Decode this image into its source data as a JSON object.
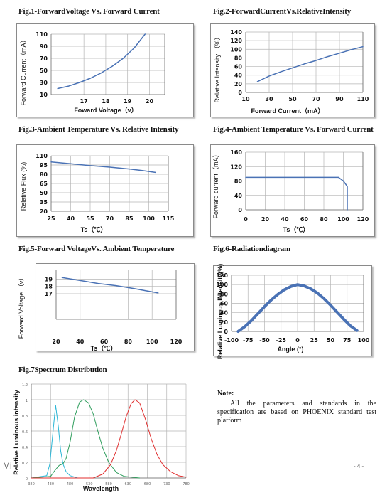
{
  "titles": {
    "f1": "Fig.1-ForwardVoltage Vs. Forward Current",
    "f2": "Fig.2-ForwardCurrentVs.RelativeIntensity",
    "f3": "Fig.3-Ambient Temperature Vs. Relative Intensity",
    "f4": "Fig.4-Ambient Temperature Vs. Forward Current",
    "f5": "Fig.5-Forward VoltageVs. Ambient Temperature",
    "f6": "Fig.6-Radiationdiagram",
    "f7": "Fig.7Spectrum Distribution"
  },
  "note": {
    "title": "Note:",
    "body": "All the parameters and standards in the specification are based on PHOENIX standard test platform"
  },
  "page_number": "- 4 -",
  "stray_text": "Mi",
  "colors": {
    "line": "#4a72b5",
    "spectrum_blue": "#2bb6d6",
    "spectrum_green": "#2e9d5c",
    "spectrum_red": "#e02d2d"
  },
  "chart_data": [
    {
      "id": "fig1",
      "type": "line",
      "xlabel": "Foward Voltage（v）",
      "ylabel": "Forward Current（mA）",
      "xticks": [
        "17",
        "18",
        "19",
        "20"
      ],
      "yticks": [
        "10",
        "30",
        "50",
        "70",
        "90",
        "110"
      ],
      "xlim": [
        15.5,
        20.7
      ],
      "ylim": [
        10,
        110
      ],
      "grid": true,
      "series": [
        {
          "x": [
            15.8,
            16.3,
            16.8,
            17.3,
            17.8,
            18.3,
            18.8,
            19.3,
            19.8
          ],
          "y": [
            20,
            24,
            30,
            37,
            46,
            57,
            70,
            87,
            110
          ]
        }
      ]
    },
    {
      "id": "fig2",
      "type": "line",
      "xlabel": "Forward Current（mA）",
      "ylabel": "Relative Intensity （%）",
      "xticks": [
        "10",
        "30",
        "50",
        "70",
        "90",
        "110"
      ],
      "yticks": [
        "0",
        "20",
        "40",
        "60",
        "80",
        "100",
        "120",
        "140"
      ],
      "xlim": [
        10,
        110
      ],
      "ylim": [
        0,
        140
      ],
      "grid": true,
      "series": [
        {
          "x": [
            20,
            30,
            40,
            50,
            60,
            70,
            80,
            90,
            100,
            110
          ],
          "y": [
            25,
            38,
            48,
            57,
            66,
            74,
            83,
            91,
            99,
            106
          ]
        }
      ]
    },
    {
      "id": "fig3",
      "type": "line",
      "xlabel": "Ts（℃）",
      "ylabel": "Relative Flux (%)",
      "xticks": [
        "25",
        "40",
        "55",
        "70",
        "85",
        "100",
        "115"
      ],
      "yticks": [
        "20",
        "35",
        "50",
        "65",
        "80",
        "95",
        "110"
      ],
      "xlim": [
        25,
        115
      ],
      "ylim": [
        20,
        110
      ],
      "grid": true,
      "series": [
        {
          "x": [
            25,
            40,
            55,
            70,
            85,
            95,
            105
          ],
          "y": [
            100,
            97,
            94,
            91.5,
            88.5,
            86,
            83
          ]
        }
      ]
    },
    {
      "id": "fig4",
      "type": "line",
      "xlabel": "Ts（℃）",
      "ylabel": "Forward current（mA）",
      "xticks": [
        "0",
        "20",
        "40",
        "60",
        "80",
        "100",
        "120"
      ],
      "yticks": [
        "0",
        "40",
        "80",
        "120",
        "160"
      ],
      "xlim": [
        0,
        120
      ],
      "ylim": [
        0,
        160
      ],
      "grid": true,
      "series": [
        {
          "x": [
            0,
            95,
            100,
            104,
            104
          ],
          "y": [
            90,
            90,
            80,
            65,
            0
          ]
        }
      ]
    },
    {
      "id": "fig5",
      "type": "line",
      "xlabel": "Ts（℃）",
      "ylabel": "Forward Voltage （v）",
      "xticks": [
        "20",
        "40",
        "60",
        "80",
        "100",
        "120"
      ],
      "yticks": [
        "17",
        "18",
        "19"
      ],
      "xlim": [
        20,
        120
      ],
      "ylim": [
        13.5,
        20.3
      ],
      "grid": true,
      "series": [
        {
          "x": [
            25,
            40,
            55,
            70,
            85,
            95,
            105
          ],
          "y": [
            19.2,
            18.8,
            18.4,
            18.1,
            17.7,
            17.4,
            17.1
          ]
        }
      ]
    },
    {
      "id": "fig6",
      "type": "line",
      "xlabel": "Angle (°)",
      "ylabel": "Relative Luminous INtensity(%)",
      "xticks": [
        "-100",
        "-75",
        "-50",
        "-25",
        "0",
        "25",
        "50",
        "75",
        "100"
      ],
      "yticks": [
        "0",
        "20",
        "40",
        "60",
        "80",
        "100",
        "120"
      ],
      "xlim": [
        -100,
        100
      ],
      "ylim": [
        0,
        120
      ],
      "grid": true,
      "series": [
        {
          "x": [
            -90,
            -80,
            -70,
            -60,
            -50,
            -40,
            -30,
            -20,
            -10,
            0,
            10,
            20,
            30,
            40,
            50,
            60,
            70,
            80,
            90
          ],
          "y": [
            0,
            10,
            23,
            38,
            53,
            67,
            79,
            89,
            96,
            100,
            97,
            91,
            82,
            70,
            56,
            41,
            26,
            12,
            2
          ]
        }
      ]
    },
    {
      "id": "fig7",
      "type": "line",
      "xlabel": "Wavelength",
      "ylabel": "Relative Luminous intensity",
      "xticks": [
        "380",
        "430",
        "480",
        "530",
        "580",
        "630",
        "680",
        "730",
        "780"
      ],
      "yticks": [
        "0",
        "0.2",
        "0.4",
        "0.6",
        "0.8",
        "1",
        "1.2"
      ],
      "xlim": [
        380,
        780
      ],
      "ylim": [
        0,
        1.2
      ],
      "grid": true,
      "series": [
        {
          "x": [
            380,
            420,
            428,
            436,
            443,
            450,
            456,
            462,
            470,
            480,
            500
          ],
          "y": [
            0,
            0.03,
            0.18,
            0.58,
            0.93,
            0.66,
            0.35,
            0.18,
            0.08,
            0.03,
            0
          ]
        },
        {
          "x": [
            380,
            430,
            440,
            452,
            462,
            470,
            480,
            492,
            505,
            515,
            528,
            540,
            552,
            565,
            580,
            600,
            620,
            640,
            660
          ],
          "y": [
            0,
            0.02,
            0.09,
            0.16,
            0.18,
            0.25,
            0.45,
            0.78,
            0.97,
            1.0,
            0.96,
            0.82,
            0.6,
            0.38,
            0.2,
            0.07,
            0.02,
            0.01,
            0
          ]
        },
        {
          "x": [
            380,
            540,
            565,
            585,
            600,
            612,
            625,
            638,
            648,
            660,
            675,
            690,
            705,
            720,
            740,
            760,
            780
          ],
          "y": [
            0,
            0,
            0.05,
            0.17,
            0.35,
            0.55,
            0.78,
            0.95,
            1.0,
            0.96,
            0.75,
            0.5,
            0.3,
            0.17,
            0.08,
            0.03,
            0.01
          ]
        }
      ]
    }
  ]
}
